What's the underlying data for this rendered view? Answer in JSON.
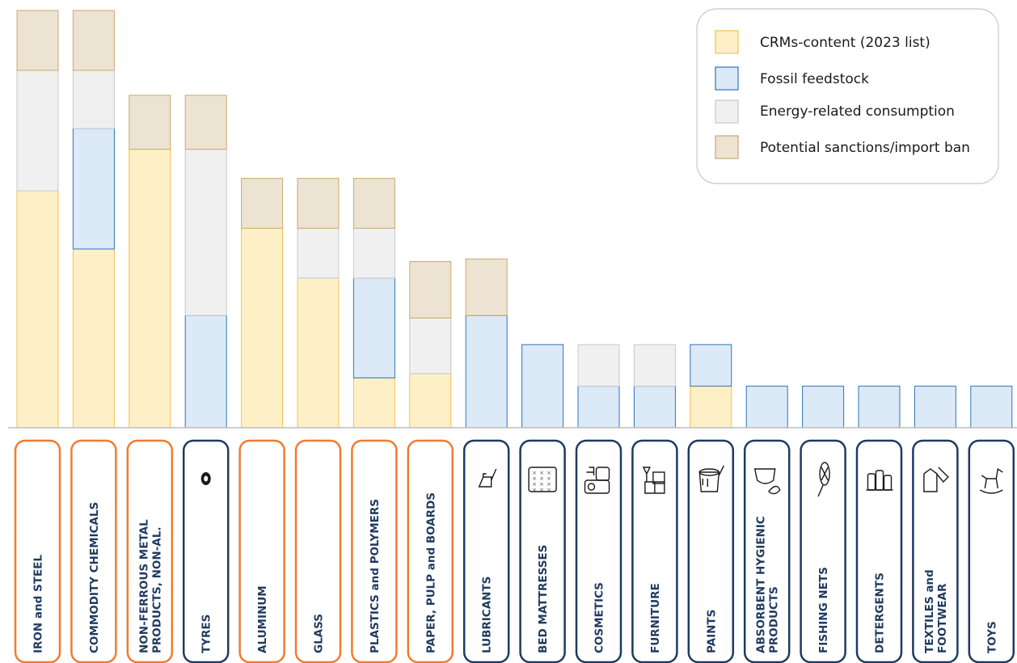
{
  "chart_data": {
    "type": "bar",
    "stacked": true,
    "title": "",
    "xlabel": "",
    "ylabel": "",
    "ylim": [
      0,
      5
    ],
    "grid": false,
    "legend_position": "top-right",
    "categories": [
      "IRON and STEEL",
      "COMMODITY CHEMICALS",
      "NON-FERROUS METAL PRODUCTS, NON-AL.",
      "TYRES",
      "ALUMINUM",
      "GLASS",
      "PLASTICS and POLYMERS",
      "PAPER, PULP and BOARDS",
      "LUBRICANTS",
      "BED MATTRESSES",
      "COSMETICS",
      "FURNITURE",
      "PAINTS",
      "ABSORBENT HYGIENIC PRODUCTS",
      "FISHING NETS",
      "DETERGENTS",
      "TEXTILES and FOOTWEAR",
      "TOYS"
    ],
    "category_lines": [
      [
        "IRON and STEEL"
      ],
      [
        "COMMODITY CHEMICALS"
      ],
      [
        "NON-FERROUS METAL",
        "PRODUCTS, NON-AL."
      ],
      [
        "TYRES"
      ],
      [
        "ALUMINUM"
      ],
      [
        "GLASS"
      ],
      [
        "PLASTICS and POLYMERS"
      ],
      [
        "PAPER, PULP and BOARDS"
      ],
      [
        "LUBRICANTS"
      ],
      [
        "BED MATTRESSES"
      ],
      [
        "COSMETICS"
      ],
      [
        "FURNITURE"
      ],
      [
        "PAINTS"
      ],
      [
        "ABSORBENT HYGIENIC",
        "PRODUCTS"
      ],
      [
        "FISHING NETS"
      ],
      [
        "DETERGENTS"
      ],
      [
        "TEXTILES and",
        "FOOTWEAR"
      ],
      [
        "TOYS"
      ]
    ],
    "category_group": [
      "orange",
      "orange",
      "orange",
      "navy",
      "orange",
      "orange",
      "orange",
      "orange",
      "navy",
      "navy",
      "navy",
      "navy",
      "navy",
      "navy",
      "navy",
      "navy",
      "navy",
      "navy"
    ],
    "category_icons": [
      "none",
      "none",
      "none",
      "tyre-icon",
      "none",
      "none",
      "none",
      "none",
      "oil-can-icon",
      "mattress-icon",
      "cosmetics-bottles-icon",
      "furniture-icon",
      "paint-bucket-icon",
      "diaper-icon",
      "fishing-net-icon",
      "detergent-bottles-icon",
      "clothes-shoe-icon",
      "rocking-horse-icon"
    ],
    "series": [
      {
        "name": "CRMs-content (2023 list)",
        "values": [
          2.85,
          2.15,
          3.35,
          0,
          2.4,
          1.8,
          0.6,
          0.65,
          0,
          0,
          0,
          0,
          0.5,
          0,
          0,
          0,
          0,
          0
        ]
      },
      {
        "name": "Fossil feedstock",
        "values": [
          0,
          1.45,
          0,
          1.35,
          0,
          0,
          1.2,
          0,
          1.35,
          1.0,
          0.5,
          0.5,
          0.5,
          0.5,
          0.5,
          0.5,
          0.5,
          0.5
        ]
      },
      {
        "name": "Energy-related consumption",
        "values": [
          1.45,
          0.7,
          0,
          2.0,
          0,
          0.6,
          0.6,
          0.67,
          0,
          0,
          0.5,
          0.5,
          0,
          0,
          0,
          0,
          0,
          0
        ]
      },
      {
        "name": "Potential sanctions/import ban",
        "values": [
          0.72,
          0.72,
          0.65,
          0.65,
          0.6,
          0.6,
          0.6,
          0.68,
          0.68,
          0,
          0,
          0,
          0,
          0,
          0,
          0,
          0,
          0
        ]
      }
    ]
  },
  "colors": {
    "crm_fill": "#fdf0c7",
    "crm_stroke": "#f2c14e",
    "fossil_fill": "#dce9f7",
    "fossil_stroke": "#2e75b6",
    "energy_fill": "#f0f0f0",
    "energy_stroke": "#c9c9c9",
    "sanctions_fill": "#ede3d2",
    "sanctions_stroke": "#c9a96e",
    "box_orange": "#ed7d31",
    "box_navy": "#1f3a5f"
  }
}
